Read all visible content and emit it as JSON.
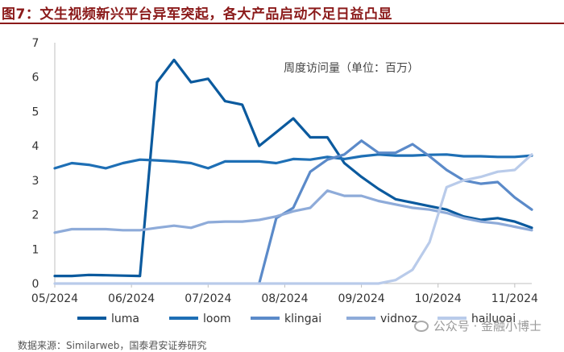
{
  "page": {
    "title": "图7：文生视频新兴平台异军突起，各大产品启动不足日益凸显",
    "footer": "数据来源：Similarweb，国泰君安证券研究",
    "watermark": "公众号 · 金融小博士",
    "watermark_icon": "wechat-icon"
  },
  "chart_data": {
    "type": "line",
    "title": "",
    "annotation": "周度访问量（单位：百万）",
    "xlabel": "",
    "ylabel": "",
    "ylim": [
      0,
      7
    ],
    "yticks": [
      "0",
      "1",
      "2",
      "3",
      "4",
      "5",
      "6",
      "7"
    ],
    "grid": false,
    "legend_position": "bottom",
    "x_ticks": [
      {
        "label": "05/2024",
        "x": 0
      },
      {
        "label": "06/2024",
        "x": 4.5
      },
      {
        "label": "07/2024",
        "x": 9
      },
      {
        "label": "08/2024",
        "x": 13.5
      },
      {
        "label": "09/2024",
        "x": 18
      },
      {
        "label": "10/2024",
        "x": 22.5
      },
      {
        "label": "11/2024",
        "x": 27
      }
    ],
    "x_range": [
      0,
      28
    ],
    "series": [
      {
        "name": "luma",
        "color": "#0b5a9e",
        "x": [
          0,
          1,
          2,
          3,
          4,
          5,
          6,
          7,
          8,
          9,
          10,
          11,
          12,
          13,
          14,
          15,
          16,
          17,
          18,
          19,
          20,
          21,
          22,
          23,
          24,
          25,
          26,
          27,
          28
        ],
        "values": [
          0.22,
          0.22,
          0.25,
          0.24,
          0.23,
          0.22,
          5.85,
          6.5,
          5.85,
          5.95,
          5.3,
          5.2,
          4.0,
          4.4,
          4.8,
          4.25,
          4.25,
          3.5,
          3.1,
          2.75,
          2.45,
          2.35,
          2.25,
          2.15,
          1.95,
          1.85,
          1.9,
          1.8,
          1.62
        ]
      },
      {
        "name": "loom",
        "color": "#1e6fb5",
        "x": [
          0,
          1,
          2,
          3,
          4,
          5,
          6,
          7,
          8,
          9,
          10,
          11,
          12,
          13,
          14,
          15,
          16,
          17,
          18,
          19,
          20,
          21,
          22,
          23,
          24,
          25,
          26,
          27,
          28
        ],
        "values": [
          3.35,
          3.5,
          3.45,
          3.35,
          3.5,
          3.6,
          3.58,
          3.55,
          3.5,
          3.35,
          3.55,
          3.55,
          3.55,
          3.5,
          3.62,
          3.6,
          3.68,
          3.62,
          3.7,
          3.75,
          3.72,
          3.72,
          3.74,
          3.75,
          3.7,
          3.7,
          3.68,
          3.68,
          3.72
        ]
      },
      {
        "name": "klingai",
        "color": "#5b8ac9",
        "x": [
          12,
          13,
          14,
          15,
          16,
          17,
          18,
          19,
          20,
          21,
          22,
          23,
          24,
          25,
          26,
          27,
          28
        ],
        "values": [
          0,
          1.9,
          2.2,
          3.25,
          3.6,
          3.75,
          4.15,
          3.8,
          3.8,
          4.05,
          3.7,
          3.3,
          3.0,
          2.9,
          2.95,
          2.5,
          2.15
        ]
      },
      {
        "name": "vidnoz",
        "color": "#8eabd9",
        "x": [
          0,
          1,
          2,
          3,
          4,
          5,
          6,
          7,
          8,
          9,
          10,
          11,
          12,
          13,
          14,
          15,
          16,
          17,
          18,
          19,
          20,
          21,
          22,
          23,
          24,
          25,
          26,
          27,
          28
        ],
        "values": [
          1.48,
          1.58,
          1.58,
          1.58,
          1.55,
          1.55,
          1.62,
          1.68,
          1.62,
          1.78,
          1.8,
          1.8,
          1.85,
          1.95,
          2.1,
          2.2,
          2.7,
          2.55,
          2.55,
          2.4,
          2.3,
          2.2,
          2.15,
          2.05,
          1.9,
          1.8,
          1.75,
          1.65,
          1.55
        ]
      },
      {
        "name": "hailuoai",
        "color": "#b9cbea",
        "x": [
          0,
          1,
          2,
          3,
          4,
          5,
          6,
          7,
          8,
          9,
          10,
          11,
          12,
          13,
          14,
          15,
          16,
          17,
          18,
          19,
          20,
          21,
          22,
          23,
          24,
          25,
          26,
          27,
          28
        ],
        "values": [
          0,
          0,
          0,
          0,
          0,
          0,
          0,
          0,
          0,
          0,
          0,
          0,
          0,
          0,
          0,
          0,
          0,
          0,
          0,
          0,
          0.1,
          0.4,
          1.2,
          2.8,
          3.0,
          3.1,
          3.25,
          3.3,
          3.75
        ]
      }
    ]
  }
}
